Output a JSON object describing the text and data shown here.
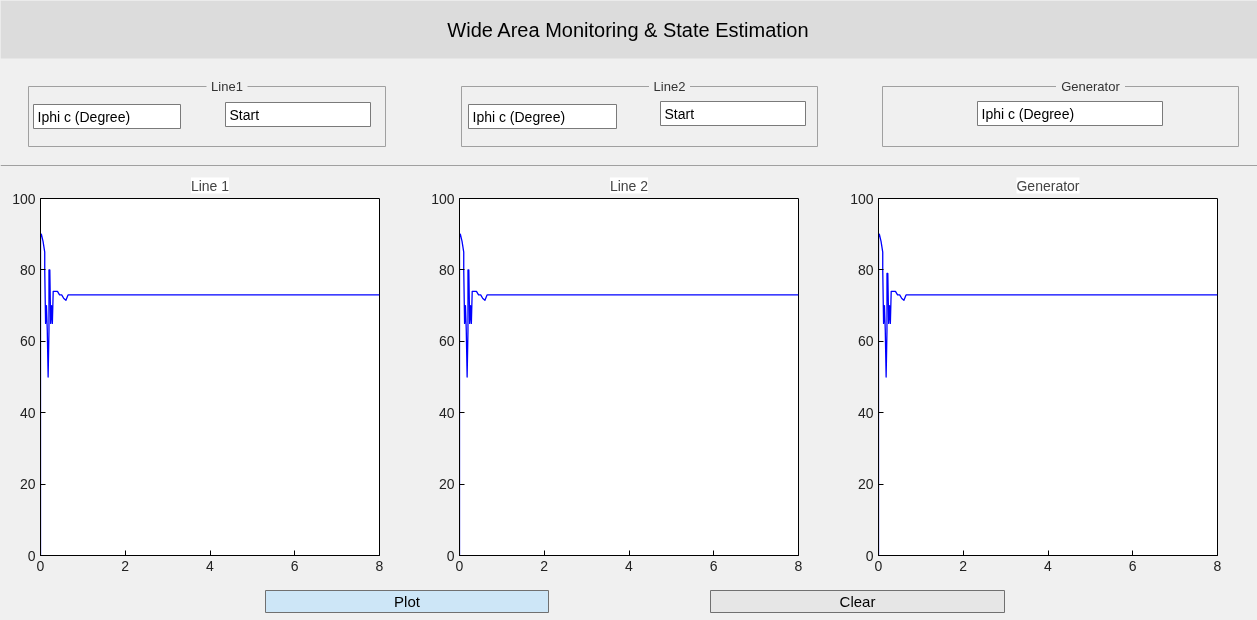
{
  "chart_data": [
    {
      "type": "other",
      "title": "Wide Area Monitoring & State Estimation",
      "annotations": [
        "Line1",
        "Iphi c (Degree)",
        "Start",
        "Line2",
        "Iphi c (Degree)",
        "Start",
        "Generator",
        "Iphi c  (Degree)"
      ]
    },
    {
      "type": "line",
      "title": "Line 1",
      "x": [
        0,
        0,
        0.02,
        0.06,
        0.1,
        0.1,
        0.12,
        0.14,
        0.16,
        0.18,
        0.2,
        0.2,
        0.22,
        0.24,
        0.26,
        0.28,
        0.3,
        0.4,
        0.45,
        0.5,
        0.55,
        0.6,
        0.65,
        8
      ],
      "values": [
        0,
        90,
        90,
        88,
        85,
        80,
        65,
        70,
        63,
        50,
        63,
        80,
        80,
        65,
        70,
        65,
        74,
        74,
        73,
        73,
        72,
        71.5,
        73,
        73
      ],
      "color": "#0000ff",
      "xlim": [
        0,
        8
      ],
      "ylim": [
        0,
        100
      ],
      "xticks": [
        0,
        2,
        4,
        6,
        8
      ],
      "yticks": [
        0,
        20,
        40,
        60,
        80,
        100
      ],
      "grid": false,
      "marker": "none"
    },
    {
      "type": "line",
      "title": "Line 2",
      "x": [
        0,
        0,
        0.02,
        0.06,
        0.1,
        0.1,
        0.12,
        0.14,
        0.16,
        0.18,
        0.2,
        0.2,
        0.22,
        0.24,
        0.26,
        0.28,
        0.3,
        0.4,
        0.45,
        0.5,
        0.55,
        0.6,
        0.65,
        8
      ],
      "values": [
        0,
        90,
        90,
        88,
        85,
        80,
        65,
        70,
        63,
        50,
        63,
        80,
        80,
        65,
        70,
        65,
        74,
        74,
        73,
        73,
        72,
        71.5,
        73,
        73
      ],
      "color": "#0000ff",
      "xlim": [
        0,
        8
      ],
      "ylim": [
        0,
        100
      ],
      "xticks": [
        0,
        2,
        4,
        6,
        8
      ],
      "yticks": [
        0,
        20,
        40,
        60,
        80,
        100
      ],
      "grid": false,
      "marker": "none"
    },
    {
      "type": "line",
      "title": "Generator",
      "x": [
        0,
        0,
        0.02,
        0.06,
        0.1,
        0.1,
        0.12,
        0.14,
        0.16,
        0.18,
        0.2,
        0.2,
        0.22,
        0.24,
        0.26,
        0.28,
        0.3,
        0.4,
        0.45,
        0.5,
        0.55,
        0.6,
        0.65,
        8
      ],
      "values": [
        0,
        90,
        90,
        88,
        85,
        80,
        65,
        70,
        63,
        50,
        63,
        79,
        79,
        65,
        70,
        65,
        74,
        74,
        73,
        73,
        72,
        71.5,
        73,
        73
      ],
      "color": "#0000ff",
      "xlim": [
        0,
        8
      ],
      "ylim": [
        0,
        100
      ],
      "xticks": [
        0,
        2,
        4,
        6,
        8
      ],
      "yticks": [
        0,
        20,
        40,
        60,
        80,
        100
      ],
      "grid": false,
      "marker": "none"
    },
    {
      "type": "other",
      "annotations": [
        "Plot",
        "Clear"
      ]
    }
  ]
}
